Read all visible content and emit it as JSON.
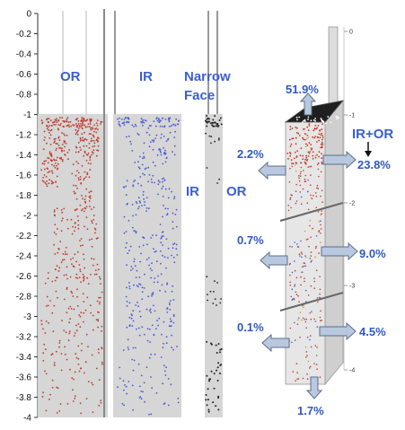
{
  "depth_axis": {
    "ticks": [
      "0",
      "-0.2",
      "-0.4",
      "-0.6",
      "-0.8",
      "-1",
      "-1.2",
      "-1.4",
      "-1.6",
      "-1.8",
      "-2",
      "-2.2",
      "-2.4",
      "-2.6",
      "-2.8",
      "-3",
      "-3.2",
      "-3.4",
      "-3.6",
      "-3.8",
      "-4"
    ],
    "range": [
      0,
      -4
    ]
  },
  "panels": {
    "or": {
      "label": "OR",
      "dot_color": "#c0392b"
    },
    "ir": {
      "label": "IR",
      "dot_color": "#4a58d8"
    },
    "narrow_face": {
      "label_line1": "Narrow",
      "label_line2": "Face",
      "side_left": "IR",
      "side_right": "OR",
      "dot_color": "#222222"
    }
  },
  "model_3d": {
    "label": "IR+OR",
    "axis_ticks": [
      "0",
      "-1",
      "-2",
      "-3",
      "-4"
    ],
    "flows": {
      "top": "51.9%",
      "bottom": "1.7%",
      "left_upper": "2.2%",
      "left_middle": "0.7%",
      "left_lower": "0.1%",
      "right_upper": "23.8%",
      "right_middle": "9.0%",
      "right_lower": "4.5%"
    }
  },
  "colors": {
    "label_blue": "#3a5fd0",
    "panel_gray": "#d6d6d6",
    "arrow_fill": "#b9c8de",
    "arrow_stroke": "#5a6f8c"
  }
}
